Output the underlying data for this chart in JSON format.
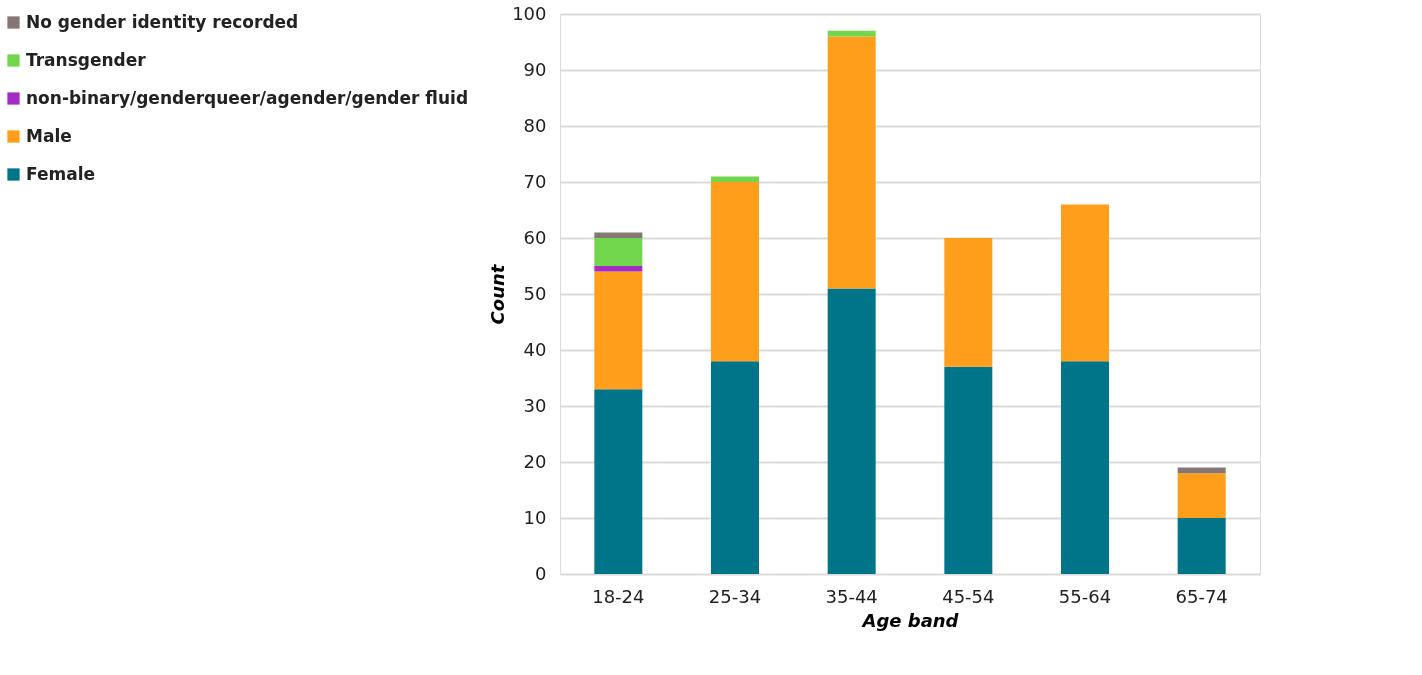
{
  "chart_data": {
    "type": "bar",
    "stacked": true,
    "xlabel": "Age band",
    "ylabel": "Count",
    "categories": [
      "18-24",
      "25-34",
      "35-44",
      "45-54",
      "55-64",
      "65-74"
    ],
    "series": [
      {
        "name": "Female",
        "color": "#007489",
        "values": [
          33,
          38,
          51,
          37,
          38,
          10
        ]
      },
      {
        "name": "Male",
        "color": "#ff9e1b",
        "values": [
          21,
          32,
          45,
          23,
          28,
          8
        ]
      },
      {
        "name": "non-binary/genderqueer/agender/gender fluid",
        "color": "#a32cc4",
        "values": [
          1,
          0,
          0,
          0,
          0,
          0
        ]
      },
      {
        "name": "Transgender",
        "color": "#71d64b",
        "values": [
          5,
          1,
          1,
          0,
          0,
          0
        ]
      },
      {
        "name": "No gender identity recorded",
        "color": "#857874",
        "values": [
          1,
          0,
          0,
          0,
          0,
          1
        ]
      }
    ],
    "ylim": [
      0,
      100
    ],
    "yticks": [
      0,
      10,
      20,
      30,
      40,
      50,
      60,
      70,
      80,
      90,
      100
    ],
    "grid": "y",
    "legend": "left"
  }
}
